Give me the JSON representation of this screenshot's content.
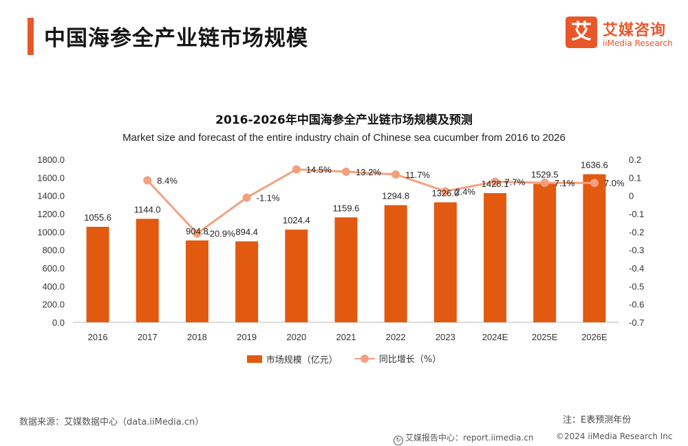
{
  "header": {
    "title": "中国海参全产业链市场规模"
  },
  "logo": {
    "mark": "艾",
    "name_cn": "艾媒咨询",
    "name_en": "iiMedia Research"
  },
  "colors": {
    "accent": "#e8572a",
    "bar": "#e15a0f",
    "line": "#f4a07e"
  },
  "chart_data": {
    "type": "bar+line",
    "title": "2016-2026年中国海参全产业链市场规模及预测",
    "subtitle": "Market size and forecast of the entire industry chain of Chinese sea cucumber from 2016 to 2026",
    "categories": [
      "2016",
      "2017",
      "2018",
      "2019",
      "2020",
      "2021",
      "2022",
      "2023",
      "2024E",
      "2025E",
      "2026E"
    ],
    "series": [
      {
        "name": "市场规模（亿元）",
        "type": "bar",
        "axis": "left",
        "values": [
          1055.6,
          1144.0,
          904.8,
          894.4,
          1024.4,
          1159.6,
          1294.8,
          1326.0,
          1428.1,
          1529.5,
          1636.6
        ],
        "labels": [
          "1055.6",
          "1144.0",
          "904.8",
          "894.4",
          "1024.4",
          "1159.6",
          "1294.8",
          "1326.0",
          "1428.1",
          "1529.5",
          "1636.6"
        ]
      },
      {
        "name": "同比增长（%）",
        "type": "line",
        "axis": "right",
        "values": [
          null,
          0.084,
          -0.209,
          -0.011,
          0.145,
          0.132,
          0.117,
          0.024,
          0.077,
          0.071,
          0.07
        ],
        "labels": [
          "",
          "8.4%",
          "-20.9%",
          "-1.1%",
          "14.5%",
          "13.2%",
          "11.7%",
          "2.4%",
          "7.7%",
          "7.1%",
          "7.0%"
        ]
      }
    ],
    "y_left": {
      "range": [
        0,
        1800
      ],
      "ticks": [
        "0.0",
        "200.0",
        "400.0",
        "600.0",
        "800.0",
        "1000.0",
        "1200.0",
        "1400.0",
        "1600.0",
        "1800.0"
      ]
    },
    "y_right": {
      "range": [
        -0.7,
        0.2
      ],
      "ticks": [
        "-0.7",
        "-0.6",
        "-0.5",
        "-0.4",
        "-0.3",
        "-0.2",
        "-0.1",
        "0",
        "0.1",
        "0.2"
      ]
    },
    "legend": [
      "市场规模（亿元）",
      "同比增长（%）"
    ],
    "legend_position": "bottom"
  },
  "footer": {
    "source": "数据来源：艾媒数据中心（data.iiMedia.cn）",
    "note": "注：E表预测年份",
    "report_center": "艾媒报告中心：report.iimedia.cn",
    "copyright": "©2024  iiMedia Research  Inc"
  }
}
